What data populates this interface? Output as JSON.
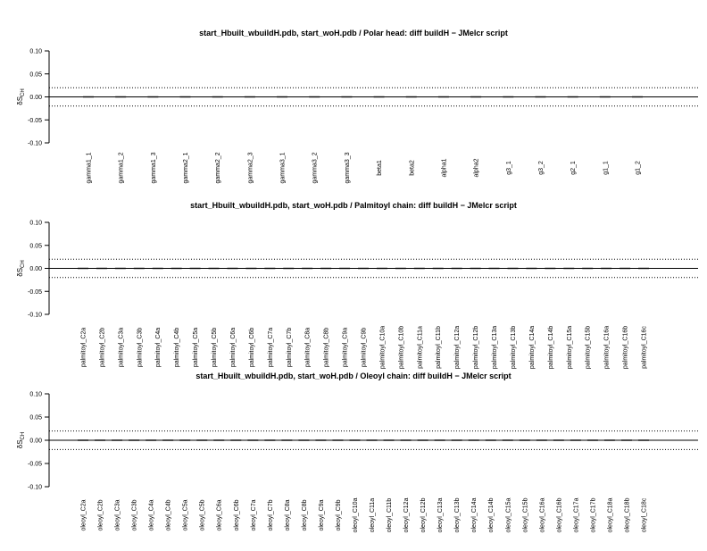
{
  "chart_data": [
    {
      "type": "line",
      "title": "start_Hbuilt_wbuildH.pdb, start_woH.pdb / Polar head: diff buildH − JMelcr script",
      "ylabel": "δS",
      "ylabel_sub": "CH",
      "ylim": [
        -0.1,
        0.1
      ],
      "yticks": [
        "0.10",
        "0.05",
        "0.00",
        "-0.05",
        "-0.10"
      ],
      "reference_lines": [
        0.02,
        0.0,
        -0.02
      ],
      "categories": [
        "gamma1_1",
        "gamma1_2",
        "gamma1_3",
        "gamma2_1",
        "gamma2_2",
        "gamma2_3",
        "gamma3_1",
        "gamma3_2",
        "gamma3_3",
        "beta1",
        "beta2",
        "alpha1",
        "alpha2",
        "g3_1",
        "g3_2",
        "g2_1",
        "g1_1",
        "g1_2"
      ],
      "values": [
        0,
        0,
        0,
        0,
        0,
        0,
        0,
        0,
        0,
        0,
        0,
        0,
        0,
        0,
        0,
        0,
        0,
        0
      ]
    },
    {
      "type": "line",
      "title": "start_Hbuilt_wbuildH.pdb, start_woH.pdb / Palmitoyl chain: diff buildH − JMelcr script",
      "ylabel": "δS",
      "ylabel_sub": "CH",
      "ylim": [
        -0.1,
        0.1
      ],
      "yticks": [
        "0.10",
        "0.05",
        "0.00",
        "-0.05",
        "-0.10"
      ],
      "reference_lines": [
        0.02,
        0.0,
        -0.02
      ],
      "categories": [
        "palmitoyl_C2a",
        "palmitoyl_C2b",
        "palmitoyl_C3a",
        "palmitoyl_C3b",
        "palmitoyl_C4a",
        "palmitoyl_C4b",
        "palmitoyl_C5a",
        "palmitoyl_C5b",
        "palmitoyl_C6a",
        "palmitoyl_C6b",
        "palmitoyl_C7a",
        "palmitoyl_C7b",
        "palmitoyl_C8a",
        "palmitoyl_C8b",
        "palmitoyl_C9a",
        "palmitoyl_C9b",
        "palmitoyl_C10a",
        "palmitoyl_C10b",
        "palmitoyl_C11a",
        "palmitoyl_C11b",
        "palmitoyl_C12a",
        "palmitoyl_C12b",
        "palmitoyl_C13a",
        "palmitoyl_C13b",
        "palmitoyl_C14a",
        "palmitoyl_C14b",
        "palmitoyl_C15a",
        "palmitoyl_C15b",
        "palmitoyl_C16a",
        "palmitoyl_C16b",
        "palmitoyl_C16c"
      ],
      "values": [
        0,
        0,
        0,
        0,
        0,
        0,
        0,
        0,
        0,
        0,
        0,
        0,
        0,
        0,
        0,
        0,
        0,
        0,
        0,
        0,
        0,
        0,
        0,
        0,
        0,
        0,
        0,
        0,
        0,
        0,
        0
      ]
    },
    {
      "type": "line",
      "title": "start_Hbuilt_wbuildH.pdb, start_woH.pdb / Oleoyl chain: diff buildH − JMelcr script",
      "ylabel": "δS",
      "ylabel_sub": "CH",
      "ylim": [
        -0.1,
        0.1
      ],
      "yticks": [
        "0.10",
        "0.05",
        "0.00",
        "-0.05",
        "-0.10"
      ],
      "reference_lines": [
        0.02,
        0.0,
        -0.02
      ],
      "categories": [
        "oleoyl_C2a",
        "oleoyl_C2b",
        "oleoyl_C3a",
        "oleoyl_C3b",
        "oleoyl_C4a",
        "oleoyl_C4b",
        "oleoyl_C5a",
        "oleoyl_C5b",
        "oleoyl_C6a",
        "oleoyl_C6b",
        "oleoyl_C7a",
        "oleoyl_C7b",
        "oleoyl_C8a",
        "oleoyl_C8b",
        "oleoyl_C9a",
        "oleoyl_C9b",
        "oleoyl_C10a",
        "oleoyl_C11a",
        "oleoyl_C11b",
        "oleoyl_C12a",
        "oleoyl_C12b",
        "oleoyl_C13a",
        "oleoyl_C13b",
        "oleoyl_C14a",
        "oleoyl_C14b",
        "oleoyl_C15a",
        "oleoyl_C15b",
        "oleoyl_C16a",
        "oleoyl_C16b",
        "oleoyl_C17a",
        "oleoyl_C17b",
        "oleoyl_C18a",
        "oleoyl_C18b",
        "oleoyl_C18c"
      ],
      "values": [
        0,
        0,
        0,
        0,
        0,
        0,
        0,
        0,
        0,
        0,
        0,
        0,
        0,
        0,
        0,
        0,
        0,
        0,
        0,
        0,
        0,
        0,
        0,
        0,
        0,
        0,
        0,
        0,
        0,
        0,
        0,
        0,
        0,
        0
      ]
    }
  ]
}
